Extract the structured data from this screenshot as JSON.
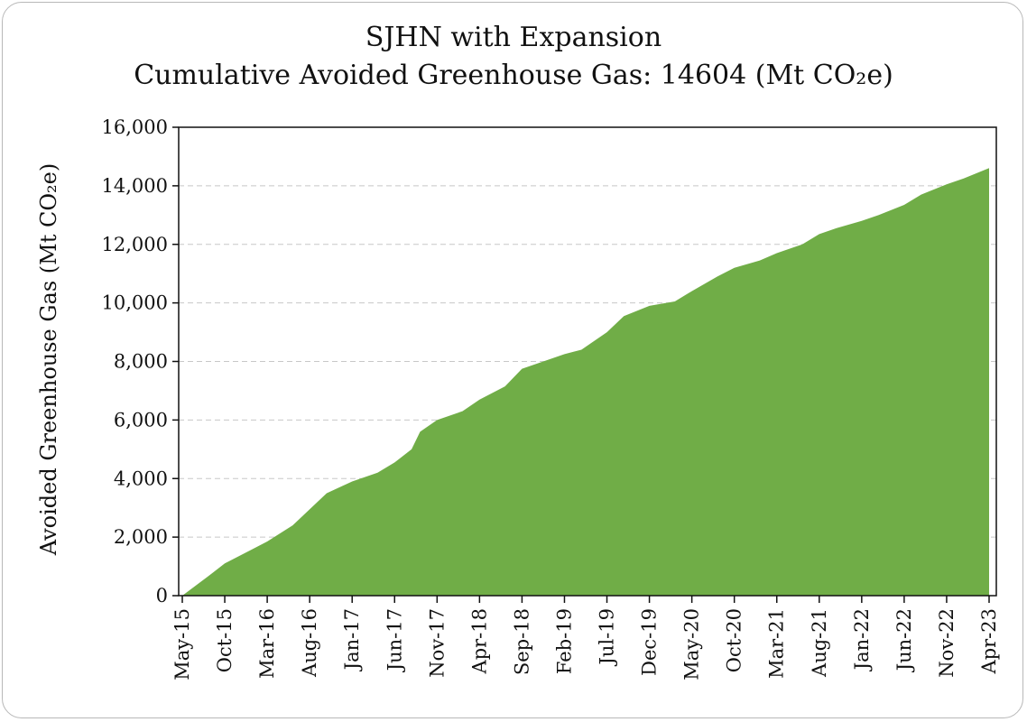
{
  "chart_data": {
    "type": "area",
    "title_line1": "SJHN with Expansion",
    "title_line2": "Cumulative Avoided Greenhouse Gas: 14604 (Mt CO₂e)",
    "xlabel": "",
    "ylabel": "Avoided Greenhouse Gas (Mt CO₂e)",
    "ylim": [
      0,
      16000
    ],
    "yticks": [
      0,
      2000,
      4000,
      6000,
      8000,
      10000,
      12000,
      14000,
      16000
    ],
    "ytick_labels": [
      "0",
      "2,000",
      "4,000",
      "6,000",
      "8,000",
      "10,000",
      "12,000",
      "14,000",
      "16,000"
    ],
    "xlim": [
      "2015-05",
      "2023-04"
    ],
    "xtick_labels": [
      "May-15",
      "Oct-15",
      "Mar-16",
      "Aug-16",
      "Jan-17",
      "Jun-17",
      "Nov-17",
      "Apr-18",
      "Sep-18",
      "Feb-19",
      "Jul-19",
      "Dec-19",
      "May-20",
      "Oct-20",
      "Mar-21",
      "Aug-21",
      "Jan-22",
      "Jun-22",
      "Nov-22",
      "Apr-23"
    ],
    "grid": "horizontal dashed",
    "fill_color": "#70ad47",
    "series": [
      {
        "x": [
          "May-15",
          "Aug-15",
          "Oct-15",
          "Jan-16",
          "Mar-16",
          "Jun-16",
          "Aug-16",
          "Oct-16",
          "Jan-17",
          "Apr-17",
          "Jun-17",
          "Aug-17",
          "Sep-17",
          "Nov-17",
          "Feb-18",
          "Apr-18",
          "Jul-18",
          "Sep-18",
          "Dec-18",
          "Feb-19",
          "Apr-19",
          "Jul-19",
          "Sep-19",
          "Dec-19",
          "Jan-20",
          "Mar-20",
          "May-20",
          "Aug-20",
          "Oct-20",
          "Jan-21",
          "Mar-21",
          "Jun-21",
          "Aug-21",
          "Oct-21",
          "Jan-22",
          "Mar-22",
          "Jun-22",
          "Aug-22",
          "Nov-22",
          "Jan-23",
          "Apr-23"
        ],
        "values": [
          0,
          650,
          1100,
          1550,
          1850,
          2400,
          2950,
          3500,
          3900,
          4200,
          4550,
          5000,
          5600,
          6000,
          6300,
          6700,
          7150,
          7750,
          8050,
          8250,
          8400,
          9000,
          9550,
          9900,
          9950,
          10050,
          10400,
          10900,
          11200,
          11450,
          11700,
          12000,
          12350,
          12550,
          12800,
          13000,
          13350,
          13700,
          14050,
          14250,
          14604
        ]
      }
    ]
  }
}
